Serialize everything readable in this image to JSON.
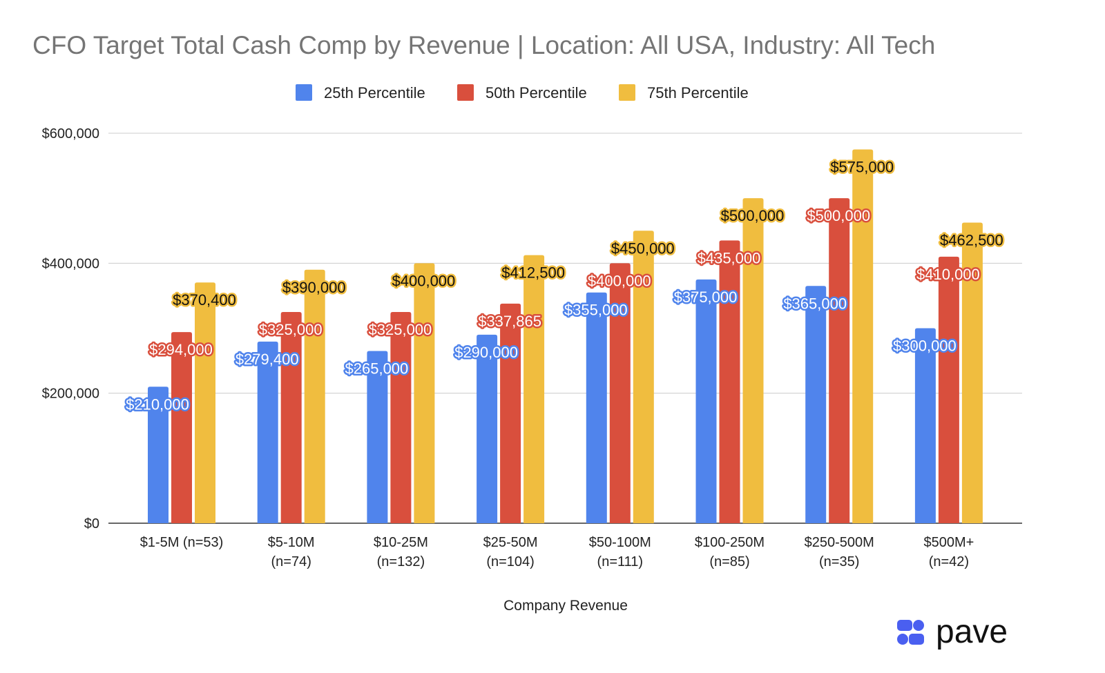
{
  "chart_data": {
    "type": "bar",
    "title": "CFO Target Total Cash Comp by Revenue | Location: All USA, Industry: All Tech",
    "xlabel": "Company Revenue",
    "ylabel": "",
    "ylim": [
      0,
      600000
    ],
    "yticks": [
      "$0",
      "$200,000",
      "$400,000",
      "$600,000"
    ],
    "ytick_values": [
      0,
      200000,
      400000,
      600000
    ],
    "grid": true,
    "legend_position": "top",
    "categories": [
      [
        "$1-5M (n=53)"
      ],
      [
        "$5-10M",
        "(n=74)"
      ],
      [
        "$10-25M",
        "(n=132)"
      ],
      [
        "$25-50M",
        "(n=104)"
      ],
      [
        "$50-100M",
        "(n=111)"
      ],
      [
        "$100-250M",
        "(n=85)"
      ],
      [
        "$250-500M",
        "(n=35)"
      ],
      [
        "$500M+",
        "(n=42)"
      ]
    ],
    "series": [
      {
        "name": "25th Percentile",
        "color": "#5084ec",
        "values": [
          210000,
          279400,
          265000,
          290000,
          355000,
          375000,
          365000,
          300000
        ],
        "labels": [
          "$210,000",
          "$279,400",
          "$265,000",
          "$290,000",
          "$355,000",
          "$375,000",
          "$365,000",
          "$300,000"
        ]
      },
      {
        "name": "50th Percentile",
        "color": "#d94f3d",
        "values": [
          294000,
          325000,
          325000,
          337865,
          400000,
          435000,
          500000,
          410000
        ],
        "labels": [
          "$294,000",
          "$325,000",
          "$325,000",
          "$337,865",
          "$400,000",
          "$435,000",
          "$500,000",
          "$410,000"
        ]
      },
      {
        "name": "75th Percentile",
        "color": "#f0bd3f",
        "values": [
          370400,
          390000,
          400000,
          412500,
          450000,
          500000,
          575000,
          462500
        ],
        "labels": [
          "$370,400",
          "$390,000",
          "$400,000",
          "$412,500",
          "$450,000",
          "$500,000",
          "$575,000",
          "$462,500"
        ]
      }
    ]
  },
  "logo": {
    "text": "pave",
    "color": "#4a5ff0"
  }
}
